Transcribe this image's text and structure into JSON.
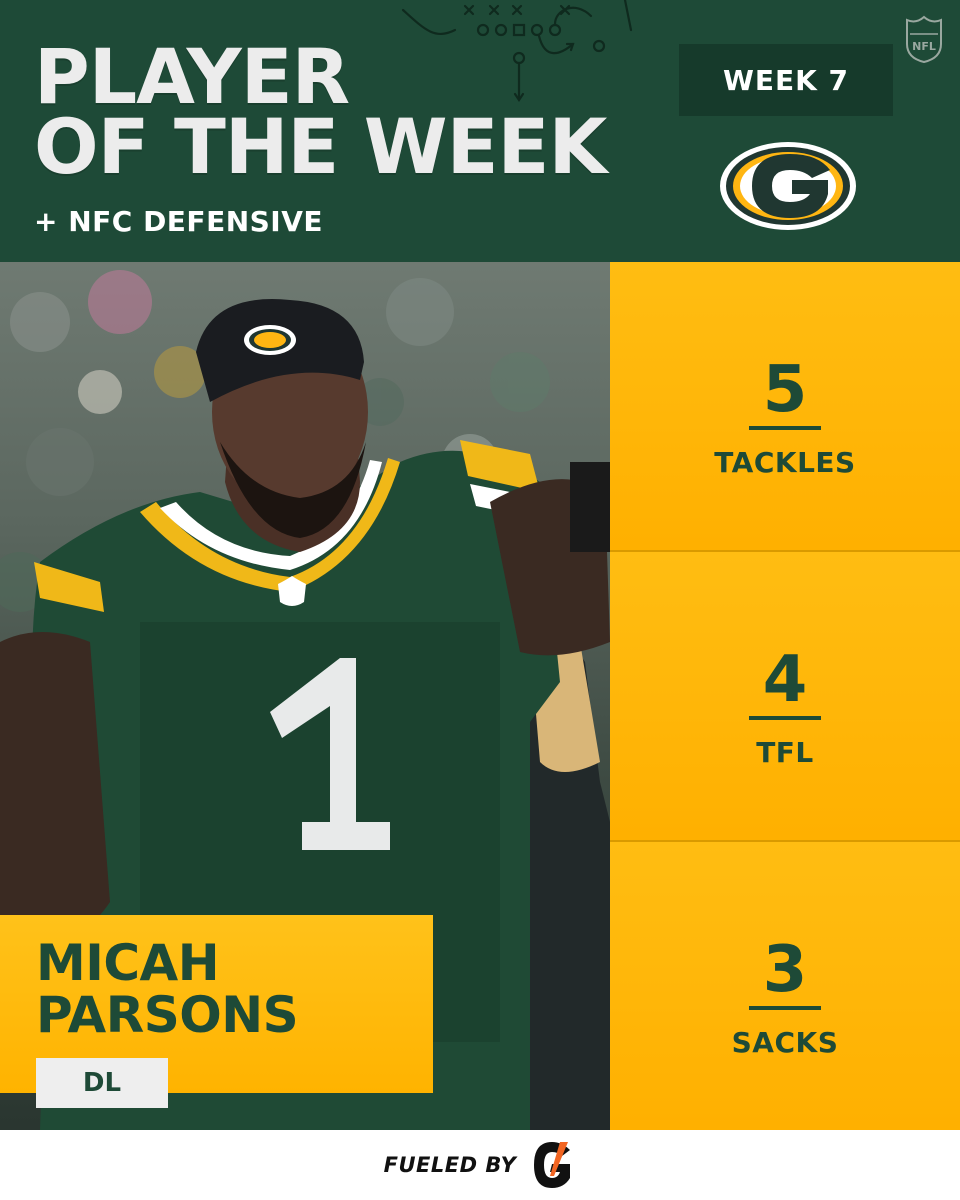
{
  "header": {
    "title_line1": "PLAYER",
    "title_line2": "OF THE WEEK",
    "subtitle": "+ NFC DEFENSIVE",
    "week": "WEEK 7",
    "league_logo": "nfl-shield-icon",
    "team_logo": "packers-g-logo"
  },
  "player": {
    "first_name": "MICAH",
    "last_name": "PARSONS",
    "position": "DL",
    "jersey_number": "1"
  },
  "stats": [
    {
      "value": "5",
      "label": "TACKLES"
    },
    {
      "value": "4",
      "label": "TFL"
    },
    {
      "value": "3",
      "label": "SACKS"
    }
  ],
  "footer": {
    "text": "FUELED BY",
    "sponsor_logo": "gatorade-g-icon"
  },
  "colors": {
    "green": "#1e4a37",
    "gold": "#ffb612",
    "white": "#ffffff"
  }
}
